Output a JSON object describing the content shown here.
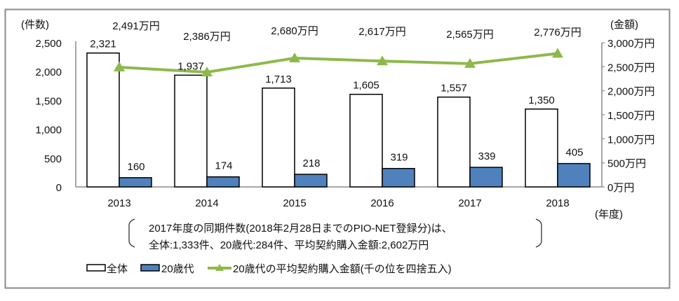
{
  "chart_data": {
    "type": "bar+line",
    "categories": [
      "2013",
      "2014",
      "2015",
      "2016",
      "2017",
      "2018"
    ],
    "series": [
      {
        "name": "全体",
        "type": "bar",
        "axis": "left",
        "values": [
          2321,
          1937,
          1713,
          1605,
          1557,
          1350
        ],
        "labels": [
          "2,321",
          "1,937",
          "1,713",
          "1,605",
          "1,557",
          "1,350"
        ],
        "color": "#ffffff"
      },
      {
        "name": "20歳代",
        "type": "bar",
        "axis": "left",
        "values": [
          160,
          174,
          218,
          319,
          339,
          405
        ],
        "labels": [
          "160",
          "174",
          "218",
          "319",
          "339",
          "405"
        ],
        "color": "#4f81bd"
      },
      {
        "name": "20歳代の平均契約購入金額(千の位を四捨五入)",
        "type": "line",
        "axis": "right",
        "values": [
          2491,
          2386,
          2680,
          2617,
          2565,
          2776
        ],
        "labels": [
          "2,491万円",
          "2,386万円",
          "2,680万円",
          "2,617万円",
          "2,565万円",
          "2,776万円"
        ],
        "color": "#8db94b"
      }
    ],
    "left_axis": {
      "label": "(件数)",
      "ylim": [
        0,
        2500
      ],
      "ticks": [
        "0",
        "500",
        "1,000",
        "1,500",
        "2,000",
        "2,500"
      ]
    },
    "right_axis": {
      "label": "(金額)",
      "ylim": [
        0,
        3000
      ],
      "ticks": [
        "0万円",
        "500万円",
        "1,000万円",
        "1,500万円",
        "2,000万円",
        "2,500万円",
        "3,000万円"
      ]
    },
    "xlabel": "(年度)",
    "grid": false,
    "legend_position": "bottom"
  },
  "note": {
    "line1": "2017年度の同期件数(2018年2月28日までのPIO-NET登録分)は、",
    "line2": "全体:1,333件、20歳代:284件、平均契約購入金額:2,602万円"
  }
}
